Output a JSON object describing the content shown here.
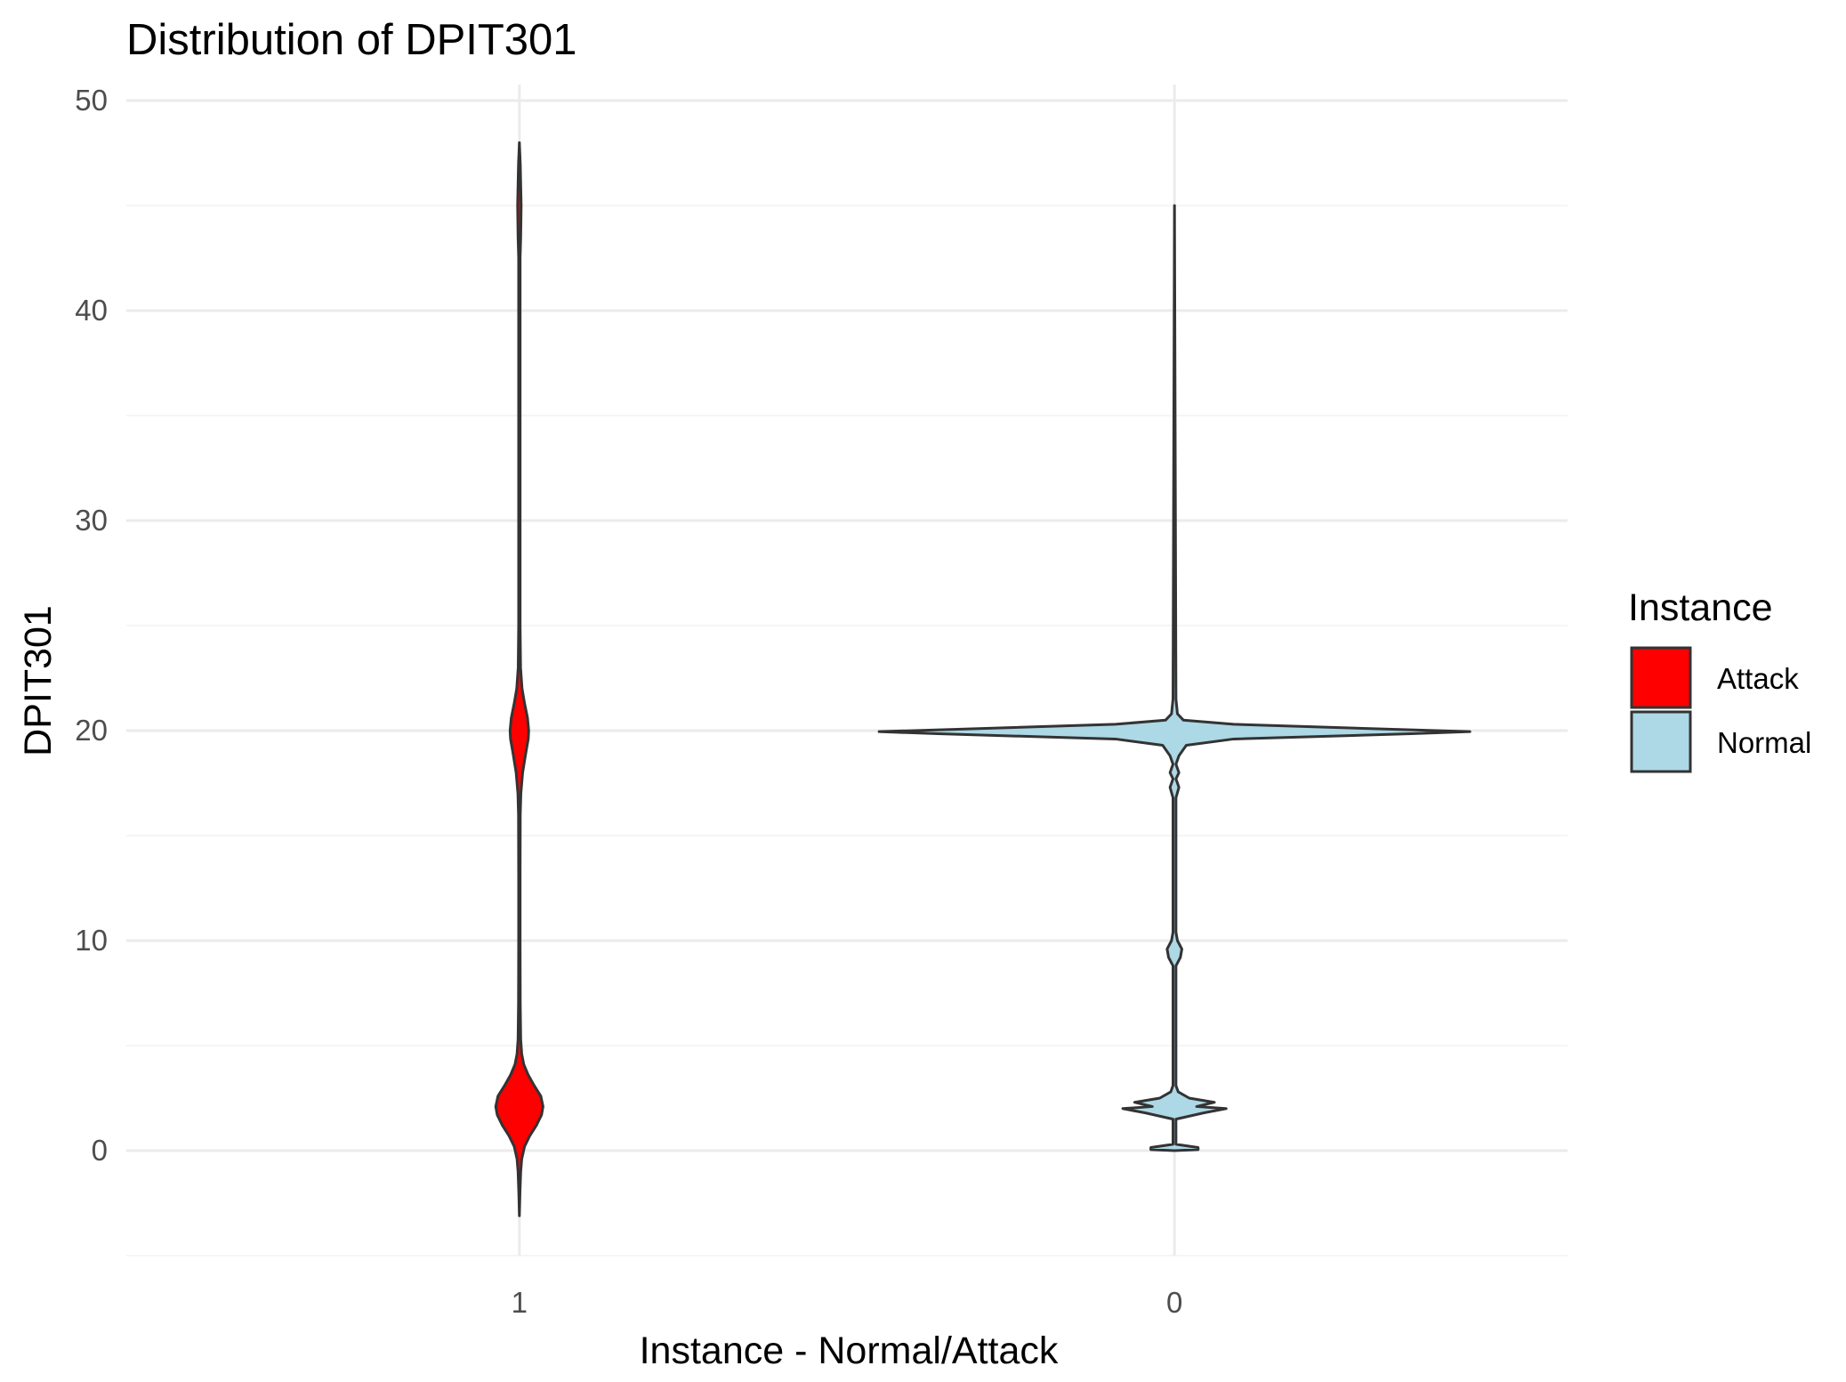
{
  "chart_data": {
    "type": "violin",
    "title": "Distribution of DPIT301",
    "xlabel": "Instance - Normal/Attack",
    "ylabel": "DPIT301",
    "categories": [
      "1",
      "0"
    ],
    "ylim": [
      -5,
      50
    ],
    "yticks": [
      0,
      10,
      20,
      30,
      40,
      50
    ],
    "grid": true,
    "legend": {
      "title": "Instance",
      "position": "right",
      "entries": [
        {
          "label": "Attack",
          "color": "#ff0000"
        },
        {
          "label": "Normal",
          "color": "#add8e6"
        }
      ]
    },
    "series": [
      {
        "category": "1",
        "fill": "#ff0000",
        "profile": [
          [
            -3.1,
            0.0
          ],
          [
            -2.0,
            0.4
          ],
          [
            -1.0,
            0.9
          ],
          [
            -0.4,
            1.6
          ],
          [
            0.2,
            3.5
          ],
          [
            0.7,
            7.0
          ],
          [
            1.2,
            11.5
          ],
          [
            1.7,
            15.0
          ],
          [
            2.1,
            16.0
          ],
          [
            2.6,
            14.5
          ],
          [
            3.1,
            10.0
          ],
          [
            3.6,
            6.0
          ],
          [
            4.1,
            3.0
          ],
          [
            4.6,
            1.6
          ],
          [
            5.3,
            0.9
          ],
          [
            7.0,
            0.6
          ],
          [
            10.0,
            0.5
          ],
          [
            13.0,
            0.5
          ],
          [
            16.0,
            0.6
          ],
          [
            17.0,
            1.0
          ],
          [
            18.0,
            2.2
          ],
          [
            19.0,
            4.5
          ],
          [
            19.6,
            6.0
          ],
          [
            20.0,
            6.3
          ],
          [
            20.6,
            5.5
          ],
          [
            21.3,
            3.5
          ],
          [
            22.0,
            1.8
          ],
          [
            23.0,
            0.8
          ],
          [
            25.0,
            0.5
          ],
          [
            42.5,
            0.5
          ],
          [
            43.5,
            0.9
          ],
          [
            45.0,
            1.2
          ],
          [
            46.0,
            0.9
          ],
          [
            47.0,
            0.6
          ],
          [
            48.0,
            0.0
          ]
        ]
      },
      {
        "category": "0",
        "fill": "#add8e6",
        "profile": [
          [
            0.0,
            0.0
          ],
          [
            0.05,
            16.0
          ],
          [
            0.15,
            16.0
          ],
          [
            0.3,
            1.0
          ],
          [
            1.5,
            1.0
          ],
          [
            1.8,
            20.0
          ],
          [
            2.0,
            35.0
          ],
          [
            2.1,
            15.0
          ],
          [
            2.3,
            27.0
          ],
          [
            2.5,
            10.0
          ],
          [
            2.8,
            2.5
          ],
          [
            3.1,
            1.0
          ],
          [
            8.8,
            1.0
          ],
          [
            9.2,
            4.0
          ],
          [
            9.6,
            5.0
          ],
          [
            10.0,
            2.0
          ],
          [
            10.4,
            1.0
          ],
          [
            16.8,
            1.0
          ],
          [
            17.3,
            3.0
          ],
          [
            17.7,
            1.0
          ],
          [
            18.0,
            3.0
          ],
          [
            18.4,
            1.0
          ],
          [
            18.8,
            3.0
          ],
          [
            19.3,
            8.0
          ],
          [
            19.6,
            40.0
          ],
          [
            19.85,
            160.0
          ],
          [
            19.95,
            200.0
          ],
          [
            20.1,
            130.0
          ],
          [
            20.3,
            40.0
          ],
          [
            20.5,
            6.0
          ],
          [
            20.8,
            2.0
          ],
          [
            21.5,
            1.0
          ],
          [
            45.0,
            0.0
          ]
        ]
      }
    ]
  }
}
